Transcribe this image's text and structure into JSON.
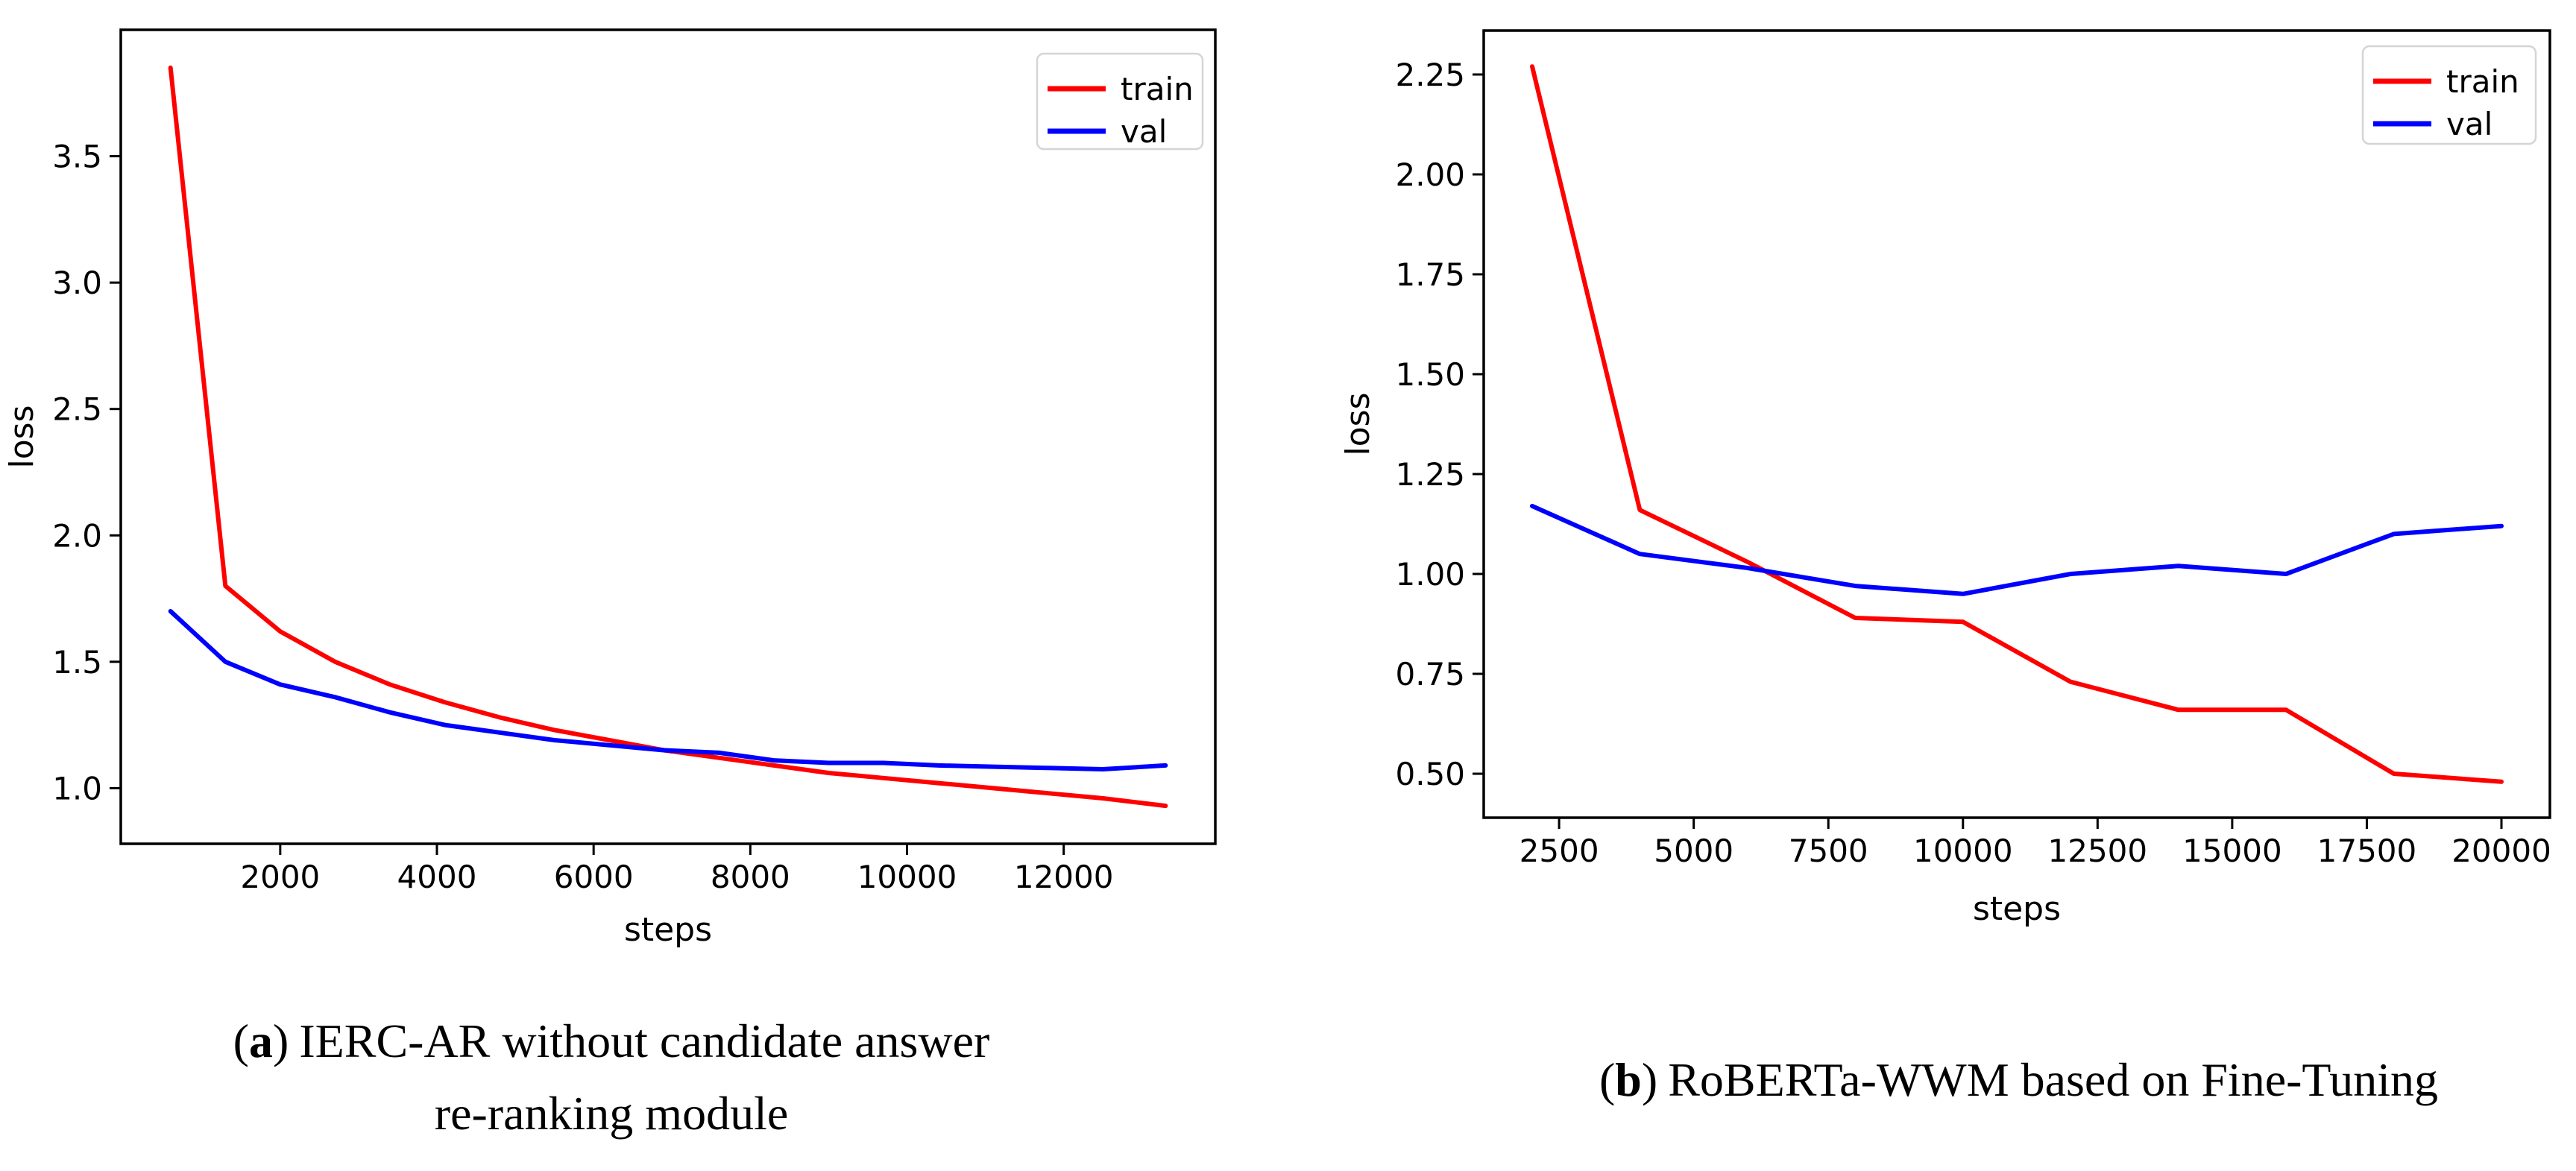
{
  "page": {
    "background": "#ffffff"
  },
  "captions": {
    "a": {
      "prefix": "(",
      "letter": "a",
      "suffix": ")",
      "line1": "IERC-AR without candidate answer",
      "line2": "re-ranking module"
    },
    "b": {
      "prefix": "(",
      "letter": "b",
      "suffix": ")",
      "text": "RoBERTa-WWM based on Fine-Tuning"
    }
  },
  "chart_data": [
    {
      "type": "line",
      "title": "",
      "xlabel": "steps",
      "ylabel": "loss",
      "xlim": [
        -35,
        13935
      ],
      "ylim": [
        0.78,
        4.0
      ],
      "grid": false,
      "legend_position": "upper right",
      "colors": {
        "train": "#ff0000",
        "val": "#0000ff",
        "spine": "#000000",
        "legend_border": "#d5d5d5",
        "legend_fill": "#ffffff",
        "text": "#000000"
      },
      "xticks": {
        "values": [
          2000,
          4000,
          6000,
          8000,
          10000,
          12000
        ],
        "labels": [
          "2000",
          "4000",
          "6000",
          "8000",
          "10000",
          "12000"
        ]
      },
      "yticks": {
        "values": [
          1.0,
          1.5,
          2.0,
          2.5,
          3.0,
          3.5
        ],
        "labels": [
          "1.0",
          "1.5",
          "2.0",
          "2.5",
          "3.0",
          "3.5"
        ]
      },
      "x": [
        600,
        1300,
        2000,
        2700,
        3400,
        4100,
        4800,
        5500,
        6200,
        6900,
        7600,
        8300,
        9000,
        9700,
        10400,
        11100,
        11800,
        12500,
        13300
      ],
      "series": [
        {
          "name": "train",
          "color": "#ff0000",
          "values": [
            3.85,
            1.8,
            1.62,
            1.5,
            1.41,
            1.34,
            1.28,
            1.23,
            1.19,
            1.15,
            1.12,
            1.09,
            1.06,
            1.04,
            1.02,
            1.0,
            0.98,
            0.96,
            0.93
          ]
        },
        {
          "name": "val",
          "color": "#0000ff",
          "values": [
            1.7,
            1.5,
            1.41,
            1.36,
            1.3,
            1.25,
            1.22,
            1.19,
            1.17,
            1.15,
            1.14,
            1.11,
            1.1,
            1.1,
            1.09,
            1.085,
            1.08,
            1.075,
            1.09
          ]
        }
      ]
    },
    {
      "type": "line",
      "title": "",
      "xlabel": "steps",
      "ylabel": "loss",
      "xlim": [
        1100,
        20900
      ],
      "ylim": [
        0.39,
        2.36
      ],
      "grid": false,
      "legend_position": "upper right",
      "colors": {
        "train": "#ff0000",
        "val": "#0000ff",
        "spine": "#000000",
        "legend_border": "#d5d5d5",
        "legend_fill": "#ffffff",
        "text": "#000000"
      },
      "xticks": {
        "values": [
          2500,
          5000,
          7500,
          10000,
          12500,
          15000,
          17500,
          20000
        ],
        "labels": [
          "2500",
          "5000",
          "7500",
          "10000",
          "12500",
          "15000",
          "17500",
          "20000"
        ]
      },
      "yticks": {
        "values": [
          0.5,
          0.75,
          1.0,
          1.25,
          1.5,
          1.75,
          2.0,
          2.25
        ],
        "labels": [
          "0.50",
          "0.75",
          "1.00",
          "1.25",
          "1.50",
          "1.75",
          "2.00",
          "2.25"
        ]
      },
      "x": [
        2000,
        4000,
        6000,
        8000,
        10000,
        12000,
        14000,
        16000,
        18000,
        20000
      ],
      "series": [
        {
          "name": "train",
          "color": "#ff0000",
          "values": [
            2.27,
            1.16,
            1.03,
            0.89,
            0.88,
            0.73,
            0.66,
            0.66,
            0.5,
            0.48
          ]
        },
        {
          "name": "val",
          "color": "#0000ff",
          "values": [
            1.17,
            1.05,
            1.015,
            0.97,
            0.95,
            1.0,
            1.02,
            1.0,
            1.1,
            1.12
          ]
        }
      ]
    }
  ]
}
